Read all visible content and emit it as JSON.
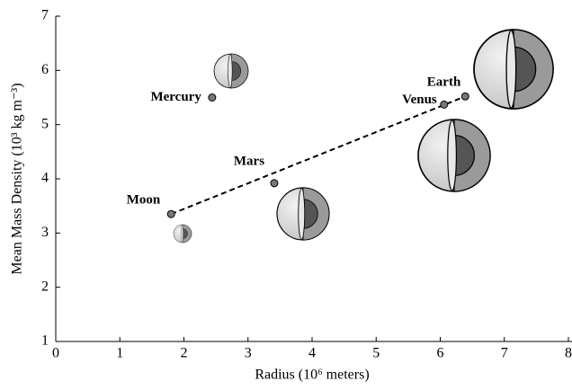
{
  "chart_data": {
    "type": "scatter",
    "x_label": "Radius (10⁶ meters)",
    "y_label": "Mean Mass Density (10³ kg m⁻³)",
    "labels": [
      "Moon",
      "Mercury",
      "Mars",
      "Venus",
      "Earth"
    ],
    "x": [
      1.8,
      2.44,
      3.41,
      6.06,
      6.39
    ],
    "values": [
      3.35,
      5.5,
      3.92,
      5.37,
      5.52
    ],
    "color": "#777777",
    "xlim": [
      0,
      8
    ],
    "xticks": [
      0,
      1,
      2,
      3,
      4,
      5,
      6,
      7,
      8
    ],
    "ylim": [
      1,
      7
    ],
    "yticks": [
      1,
      2,
      3,
      4,
      5,
      6,
      7
    ]
  }
}
